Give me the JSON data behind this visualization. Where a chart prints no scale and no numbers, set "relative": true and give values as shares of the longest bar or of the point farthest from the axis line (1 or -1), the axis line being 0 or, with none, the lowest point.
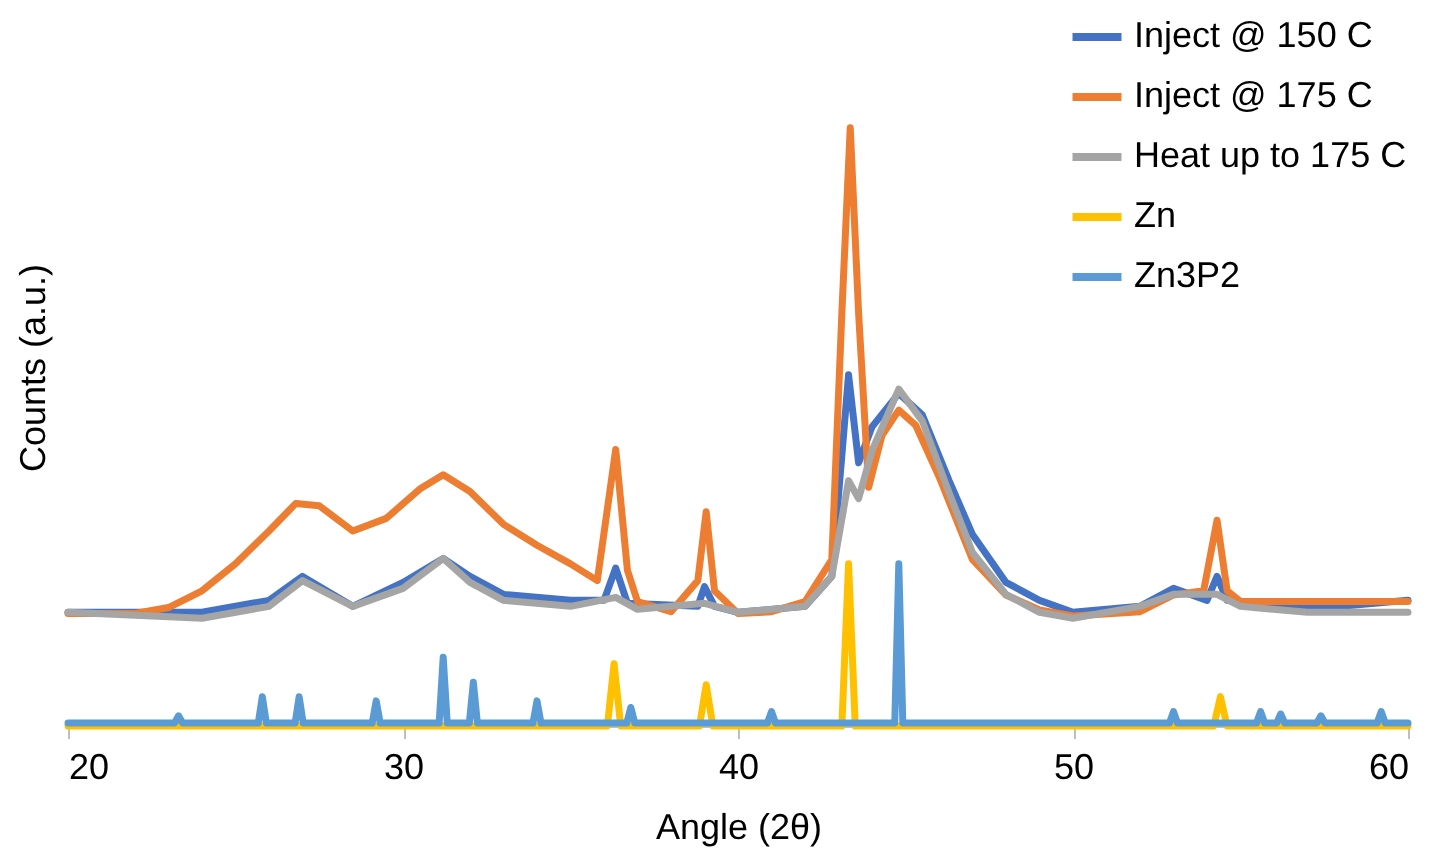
{
  "chart_data": {
    "type": "line",
    "relative": true,
    "xlabel": "Angle (2θ)",
    "ylabel": "Counts (a.u.)",
    "xlim": [
      20,
      60
    ],
    "xticks": [
      20,
      30,
      40,
      50,
      60
    ],
    "grid": false,
    "legend": "top right",
    "marker": "none",
    "line_style": "solid",
    "series": [
      {
        "name": "Inject @ 150 C",
        "color": "#4472c4",
        "x": [
          20,
          24,
          26,
          27,
          28.5,
          30,
          31.2,
          32,
          33,
          35,
          36,
          36.35,
          36.7,
          38.8,
          39,
          39.3,
          40,
          42,
          42.8,
          43.3,
          43.6,
          44,
          44.8,
          45.5,
          46.3,
          47,
          48,
          49,
          50,
          52,
          53,
          54,
          54.3,
          54.6,
          56,
          58,
          60
        ],
        "values": [
          0.19,
          0.19,
          0.21,
          0.25,
          0.2,
          0.24,
          0.28,
          0.25,
          0.22,
          0.21,
          0.21,
          0.264,
          0.205,
          0.2,
          0.233,
          0.2,
          0.19,
          0.2,
          0.25,
          0.587,
          0.44,
          0.5,
          0.556,
          0.52,
          0.41,
          0.32,
          0.24,
          0.21,
          0.19,
          0.2,
          0.23,
          0.21,
          0.25,
          0.21,
          0.2,
          0.2,
          0.21
        ]
      },
      {
        "name": "Inject @ 175 C",
        "color": "#ed7d31",
        "x": [
          20,
          22,
          23,
          24,
          25,
          26,
          26.8,
          27.5,
          28.5,
          29.5,
          30.5,
          31.2,
          32,
          33,
          34,
          35,
          35.8,
          36.35,
          36.7,
          37,
          38,
          38.8,
          39.05,
          39.3,
          40,
          41,
          42,
          42.8,
          43.1,
          43.35,
          43.6,
          43.9,
          44.3,
          44.8,
          45.3,
          46,
          47,
          48,
          49,
          50,
          52,
          53,
          53.9,
          54.3,
          54.6,
          55,
          57,
          60
        ],
        "values": [
          0.188,
          0.188,
          0.198,
          0.226,
          0.271,
          0.326,
          0.372,
          0.368,
          0.326,
          0.347,
          0.396,
          0.42,
          0.392,
          0.337,
          0.302,
          0.271,
          0.243,
          0.462,
          0.26,
          0.208,
          0.191,
          0.243,
          0.358,
          0.226,
          0.188,
          0.191,
          0.208,
          0.278,
          0.69,
          1,
          0.69,
          0.399,
          0.486,
          0.528,
          0.503,
          0.417,
          0.278,
          0.219,
          0.194,
          0.184,
          0.191,
          0.219,
          0.226,
          0.344,
          0.226,
          0.208,
          0.208,
          0.208
        ]
      },
      {
        "name": "Heat up to 175 C",
        "color": "#a5a5a5",
        "x": [
          20,
          24,
          26,
          27,
          28.5,
          30,
          31.2,
          32,
          33,
          35,
          36.35,
          37,
          39,
          40,
          42,
          42.8,
          43.3,
          43.6,
          44,
          44.8,
          45.5,
          46.3,
          47,
          48,
          49,
          50,
          52,
          53,
          54,
          54.3,
          55,
          57,
          60
        ],
        "values": [
          0.19,
          0.18,
          0.2,
          0.243,
          0.2,
          0.23,
          0.28,
          0.24,
          0.21,
          0.2,
          0.215,
          0.195,
          0.205,
          0.19,
          0.2,
          0.25,
          0.41,
          0.38,
          0.46,
          0.563,
          0.51,
          0.39,
          0.29,
          0.22,
          0.19,
          0.18,
          0.2,
          0.22,
          0.22,
          0.22,
          0.2,
          0.19,
          0.19
        ]
      },
      {
        "name": "Zn",
        "color": "#ffc000",
        "x": [
          20,
          36.1,
          36.3,
          36.5,
          38.85,
          39.05,
          39.25,
          43.1,
          43.3,
          43.5,
          54.2,
          54.4,
          54.6,
          60
        ],
        "values": [
          0,
          0,
          0.104,
          0,
          0,
          0.069,
          0,
          0,
          0.271,
          0,
          0,
          0.049,
          0,
          0
        ]
      },
      {
        "name": "Zn3P2",
        "color": "#5b9bd5",
        "x": [
          20,
          23.18,
          23.3,
          23.42,
          25.68,
          25.8,
          25.92,
          26.78,
          26.9,
          27.02,
          29.08,
          29.2,
          29.32,
          31.08,
          31.2,
          31.32,
          31.98,
          32.1,
          32.22,
          33.88,
          34,
          34.12,
          36.68,
          36.8,
          36.92,
          40.88,
          41,
          41.12,
          44.68,
          44.8,
          44.92,
          52.88,
          53,
          53.12,
          55.48,
          55.6,
          55.72,
          56.08,
          56.2,
          56.32,
          57.28,
          57.4,
          57.52,
          59.08,
          59.2,
          59.32,
          60
        ],
        "values": [
          0.005,
          0.005,
          0.017,
          0.005,
          0.005,
          0.049,
          0.005,
          0.005,
          0.049,
          0.005,
          0.005,
          0.042,
          0.005,
          0.005,
          0.115,
          0.005,
          0.005,
          0.073,
          0.005,
          0.005,
          0.042,
          0.005,
          0.005,
          0.031,
          0.005,
          0.005,
          0.024,
          0.005,
          0.005,
          0.271,
          0.005,
          0.005,
          0.024,
          0.005,
          0.005,
          0.024,
          0.005,
          0.005,
          0.02,
          0.005,
          0.005,
          0.017,
          0.005,
          0.005,
          0.024,
          0.005,
          0.005
        ]
      }
    ]
  }
}
